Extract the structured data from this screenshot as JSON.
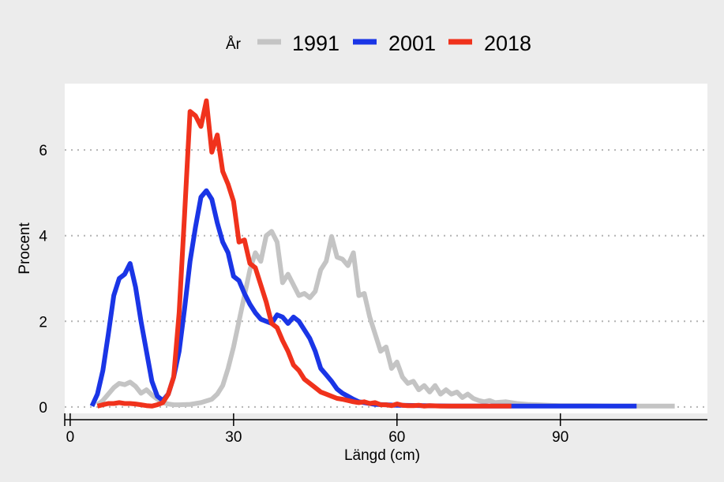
{
  "chart_data": {
    "type": "line",
    "xlabel": "Längd (cm)",
    "ylabel": "Procent",
    "xlim": [
      -1,
      117
    ],
    "ylim": [
      -0.15,
      7.55
    ],
    "xticks": [
      0,
      30,
      60,
      90
    ],
    "yticks": [
      0,
      2,
      4,
      6
    ],
    "grid": "horizontal-dotted",
    "legend": {
      "title": "År",
      "position": "top"
    },
    "series": [
      {
        "name": "1991",
        "color": "#c4c4c4",
        "x": [
          5,
          6,
          7,
          8,
          9,
          10,
          11,
          12,
          13,
          14,
          15,
          16,
          17,
          18,
          19,
          20,
          22,
          24,
          26,
          27,
          28,
          29,
          30,
          31,
          32,
          33,
          34,
          35,
          36,
          37,
          38,
          39,
          40,
          41,
          42,
          43,
          44,
          45,
          46,
          47,
          48,
          49,
          50,
          51,
          52,
          53,
          54,
          55,
          56,
          57,
          58,
          59,
          60,
          61,
          62,
          63,
          64,
          65,
          66,
          67,
          68,
          69,
          70,
          71,
          72,
          73,
          74,
          75,
          76,
          77,
          78,
          80,
          82,
          84,
          86,
          88,
          90,
          95,
          100,
          105,
          111
        ],
        "values": [
          0.05,
          0.15,
          0.3,
          0.45,
          0.55,
          0.52,
          0.58,
          0.48,
          0.32,
          0.4,
          0.28,
          0.18,
          0.1,
          0.07,
          0.05,
          0.05,
          0.06,
          0.1,
          0.18,
          0.3,
          0.5,
          0.9,
          1.4,
          2.0,
          2.6,
          3.2,
          3.6,
          3.4,
          4.0,
          4.1,
          3.85,
          2.9,
          3.1,
          2.85,
          2.6,
          2.65,
          2.55,
          2.7,
          3.2,
          3.4,
          3.98,
          3.5,
          3.45,
          3.3,
          3.6,
          2.6,
          2.65,
          2.1,
          1.7,
          1.3,
          1.4,
          0.9,
          1.05,
          0.7,
          0.55,
          0.6,
          0.4,
          0.5,
          0.35,
          0.5,
          0.3,
          0.4,
          0.3,
          0.35,
          0.22,
          0.3,
          0.2,
          0.15,
          0.12,
          0.15,
          0.1,
          0.12,
          0.08,
          0.06,
          0.05,
          0.04,
          0.03,
          0.03,
          0.02,
          0.02,
          0.02
        ]
      },
      {
        "name": "2001",
        "color": "#1a35e6",
        "x": [
          4,
          5,
          6,
          7,
          8,
          9,
          10,
          11,
          12,
          13,
          14,
          15,
          16,
          17,
          18,
          19,
          20,
          21,
          22,
          23,
          24,
          25,
          26,
          27,
          28,
          29,
          30,
          31,
          32,
          33,
          34,
          35,
          36,
          37,
          38,
          39,
          40,
          41,
          42,
          43,
          44,
          45,
          46,
          47,
          48,
          49,
          50,
          51,
          52,
          53,
          54,
          55,
          56,
          58,
          60,
          65,
          70,
          80,
          90,
          104
        ],
        "values": [
          0.02,
          0.3,
          0.85,
          1.7,
          2.6,
          3.0,
          3.1,
          3.35,
          2.8,
          2.0,
          1.3,
          0.6,
          0.25,
          0.15,
          0.3,
          0.7,
          1.3,
          2.3,
          3.4,
          4.2,
          4.9,
          5.05,
          4.85,
          4.3,
          3.85,
          3.6,
          3.05,
          2.95,
          2.65,
          2.4,
          2.2,
          2.05,
          2.0,
          1.95,
          2.15,
          2.1,
          1.95,
          2.1,
          2.0,
          1.8,
          1.6,
          1.3,
          0.9,
          0.75,
          0.6,
          0.42,
          0.32,
          0.25,
          0.18,
          0.12,
          0.1,
          0.08,
          0.06,
          0.05,
          0.04,
          0.03,
          0.02,
          0.02,
          0.02,
          0.02
        ]
      },
      {
        "name": "2018",
        "color": "#f0321c",
        "x": [
          5,
          6,
          7,
          8,
          9,
          10,
          11,
          12,
          13,
          14,
          15,
          16,
          17,
          18,
          19,
          20,
          21,
          22,
          23,
          24,
          25,
          26,
          27,
          28,
          29,
          30,
          31,
          32,
          33,
          34,
          35,
          36,
          37,
          38,
          39,
          40,
          41,
          42,
          43,
          44,
          45,
          46,
          47,
          48,
          49,
          50,
          51,
          52,
          53,
          54,
          55,
          56,
          57,
          58,
          59,
          60,
          61,
          62,
          63,
          64,
          65,
          66,
          68,
          70,
          72,
          75,
          78,
          81
        ],
        "values": [
          0.02,
          0.05,
          0.08,
          0.08,
          0.1,
          0.08,
          0.08,
          0.07,
          0.05,
          0.03,
          0.02,
          0.05,
          0.1,
          0.3,
          0.7,
          2.2,
          4.5,
          6.9,
          6.8,
          6.55,
          7.15,
          5.95,
          6.35,
          5.5,
          5.2,
          4.8,
          3.85,
          3.9,
          3.35,
          3.25,
          2.85,
          2.45,
          1.95,
          1.85,
          1.55,
          1.3,
          0.98,
          0.85,
          0.65,
          0.55,
          0.45,
          0.35,
          0.3,
          0.25,
          0.2,
          0.18,
          0.15,
          0.12,
          0.1,
          0.12,
          0.08,
          0.1,
          0.05,
          0.05,
          0.03,
          0.07,
          0.04,
          0.03,
          0.03,
          0.04,
          0.02,
          0.03,
          0.02,
          0.02,
          0.02,
          0.02,
          0.02,
          0.02
        ]
      }
    ]
  }
}
